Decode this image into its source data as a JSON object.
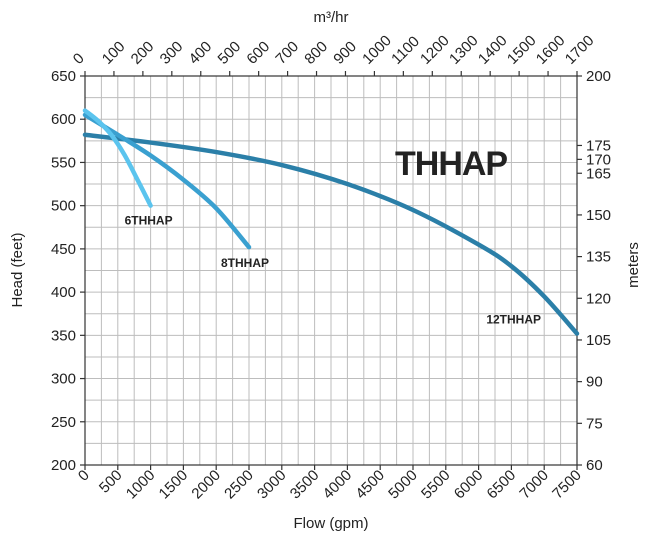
{
  "chart_data": {
    "type": "line",
    "title": "THHAP",
    "xlabel": "Flow (gpm)",
    "ylabel": "Head (feet)",
    "x2label": "m³/hr",
    "y2label": "meters",
    "xlim": [
      0,
      7500
    ],
    "ylim": [
      200,
      650
    ],
    "x2lim": [
      0,
      1700
    ],
    "y2lim": [
      60,
      200
    ],
    "x_ticks": [
      "0",
      "500",
      "1000",
      "1500",
      "2000",
      "2500",
      "3000",
      "3500",
      "4000",
      "4500",
      "5000",
      "5500",
      "6000",
      "6500",
      "7000",
      "7500"
    ],
    "y_ticks": [
      "200",
      "250",
      "300",
      "350",
      "400",
      "450",
      "500",
      "550",
      "600",
      "650"
    ],
    "x2_ticks": [
      "0",
      "100",
      "200",
      "300",
      "400",
      "500",
      "600",
      "700",
      "800",
      "900",
      "1000",
      "1100",
      "1200",
      "1300",
      "1400",
      "1500",
      "1600",
      "1700"
    ],
    "y2_ticks": [
      "60",
      "75",
      "90",
      "105",
      "120",
      "135",
      "150",
      "165",
      "170",
      "175",
      "200"
    ],
    "grid": true,
    "series": [
      {
        "name": "6THHAP",
        "color": "#5bc4ee",
        "x": [
          0,
          200,
          400,
          600,
          800,
          1000
        ],
        "y": [
          610,
          598,
          582,
          559,
          530,
          500
        ]
      },
      {
        "name": "8THHAP",
        "color": "#3aa0d0",
        "x": [
          0,
          500,
          1000,
          1500,
          2000,
          2500
        ],
        "y": [
          605,
          582,
          558,
          530,
          497,
          452
        ]
      },
      {
        "name": "12THHAP",
        "color": "#2b7fa8",
        "x": [
          0,
          1000,
          2000,
          3000,
          4000,
          5000,
          6000,
          6500,
          7000,
          7500
        ],
        "y": [
          582,
          573,
          562,
          547,
          525,
          495,
          455,
          430,
          395,
          352
        ]
      }
    ]
  }
}
